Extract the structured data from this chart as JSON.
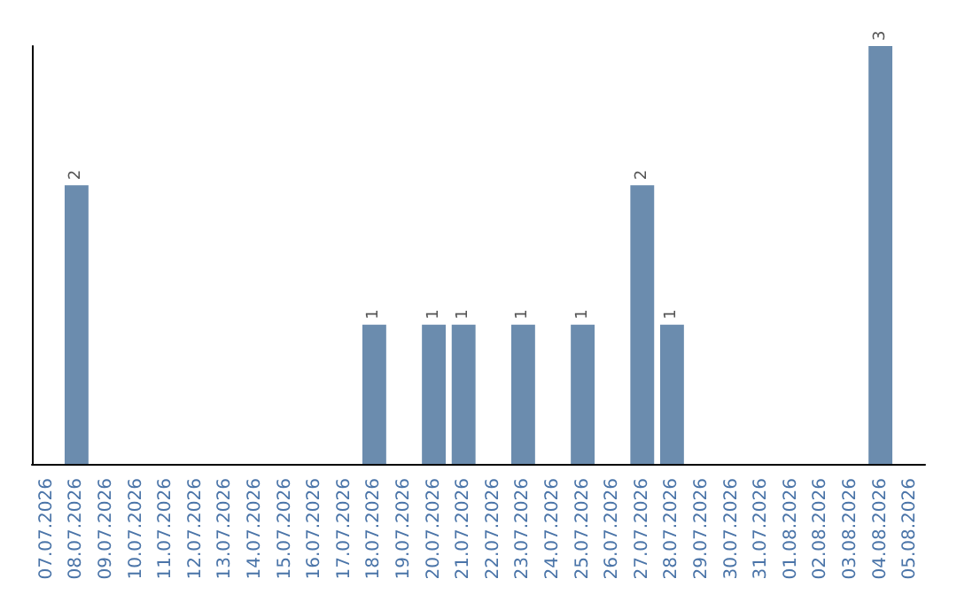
{
  "chart_data": {
    "type": "bar",
    "categories": [
      "07.07.2026",
      "08.07.2026",
      "09.07.2026",
      "10.07.2026",
      "11.07.2026",
      "12.07.2026",
      "13.07.2026",
      "14.07.2026",
      "15.07.2026",
      "16.07.2026",
      "17.07.2026",
      "18.07.2026",
      "19.07.2026",
      "20.07.2026",
      "21.07.2026",
      "22.07.2026",
      "23.07.2026",
      "24.07.2026",
      "25.07.2026",
      "26.07.2026",
      "27.07.2026",
      "28.07.2026",
      "29.07.2026",
      "30.07.2026",
      "31.07.2026",
      "01.08.2026",
      "02.08.2026",
      "03.08.2026",
      "04.08.2026",
      "05.08.2026"
    ],
    "values": [
      0,
      2,
      0,
      0,
      0,
      0,
      0,
      0,
      0,
      0,
      0,
      1,
      0,
      1,
      1,
      0,
      1,
      0,
      1,
      0,
      2,
      1,
      0,
      0,
      0,
      0,
      0,
      0,
      3,
      0
    ],
    "value_labels": [
      null,
      "2",
      null,
      null,
      null,
      null,
      null,
      null,
      null,
      null,
      null,
      "1",
      null,
      "1",
      "1",
      null,
      "1",
      null,
      "1",
      null,
      "2",
      "1",
      null,
      null,
      null,
      null,
      null,
      null,
      "3",
      null
    ],
    "color": "#6b8cae",
    "tick_labels": "x"
  }
}
